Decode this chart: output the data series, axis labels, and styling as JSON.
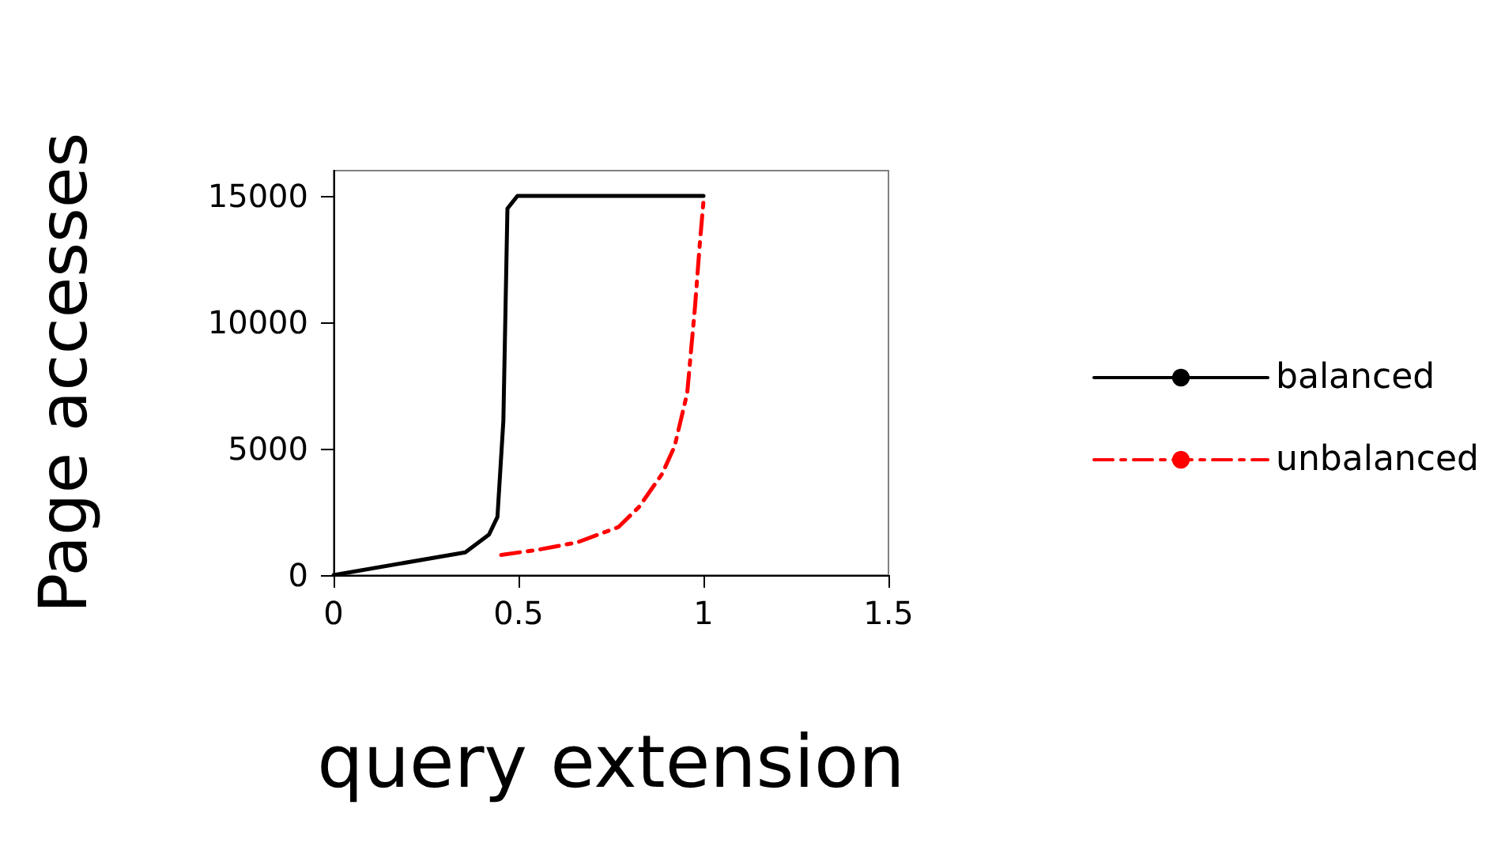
{
  "chart_data": {
    "type": "line",
    "xlabel": "query extension",
    "ylabel": "Page accesses",
    "xlim": [
      0,
      1.5
    ],
    "xticks": [
      0,
      0.5,
      1,
      1.5
    ],
    "ylim": [
      0,
      16000
    ],
    "yticks": [
      0,
      5000,
      10000,
      15000
    ],
    "grid": false,
    "legend": "right",
    "marker": "none",
    "series": [
      {
        "name": "balanced",
        "color": "#000000",
        "line_style": "solid",
        "x": [
          0,
          0.356,
          0.42,
          0.443,
          0.459,
          0.47,
          0.497,
          1.0
        ],
        "values": [
          0,
          900,
          1600,
          2300,
          6100,
          14500,
          15000,
          15000
        ]
      },
      {
        "name": "unbalanced",
        "color": "#ff0000",
        "line_style": "dashed",
        "x": [
          0.453,
          0.552,
          0.66,
          0.77,
          0.826,
          0.888,
          0.922,
          0.956,
          0.977,
          0.99,
          1.0
        ],
        "values": [
          800,
          1000,
          1300,
          1900,
          2700,
          4000,
          5100,
          7200,
          10600,
          13100,
          14800
        ]
      }
    ]
  }
}
